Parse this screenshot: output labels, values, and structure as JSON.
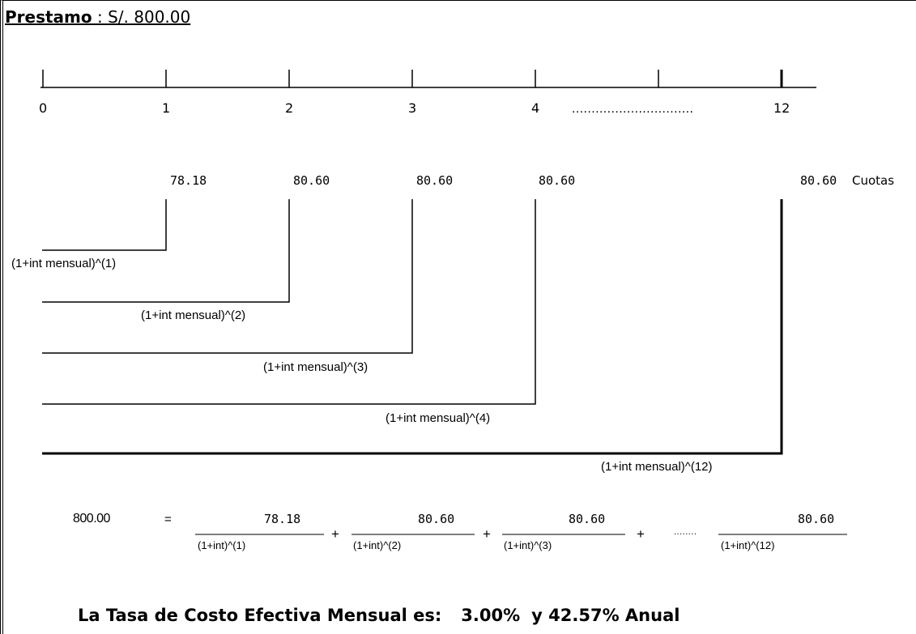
{
  "title": {
    "label": "Prestamo",
    "separator": " : ",
    "amount": "S/. 800.00"
  },
  "timeline": {
    "periods": [
      "0",
      "1",
      "2",
      "3",
      "4",
      "12"
    ],
    "ellipsis": "..............................."
  },
  "cuotas": {
    "values": [
      "78.18",
      "80.60",
      "80.60",
      "80.60",
      "80.60"
    ],
    "label": "Cuotas"
  },
  "discount_labels": [
    "(1+int mensual)^(1)",
    "(1+int mensual)^(2)",
    "(1+int mensual)^(3)",
    "(1+int mensual)^(4)",
    "(1+int mensual)^(12)"
  ],
  "equation": {
    "lhs": "800.00",
    "equals": "=",
    "plus": "+",
    "dots": "........",
    "terms": [
      {
        "numerator": "78.18",
        "denominator": "(1+int)^(1)"
      },
      {
        "numerator": "80.60",
        "denominator": "(1+int)^(2)"
      },
      {
        "numerator": "80.60",
        "denominator": "(1+int)^(3)"
      },
      {
        "numerator": "80.60",
        "denominator": "(1+int)^(12)"
      }
    ]
  },
  "conclusion": {
    "label": "La Tasa de Costo Efectiva Mensual es:",
    "monthly": "3.00%",
    "annual": "y 42.57% Anual"
  }
}
